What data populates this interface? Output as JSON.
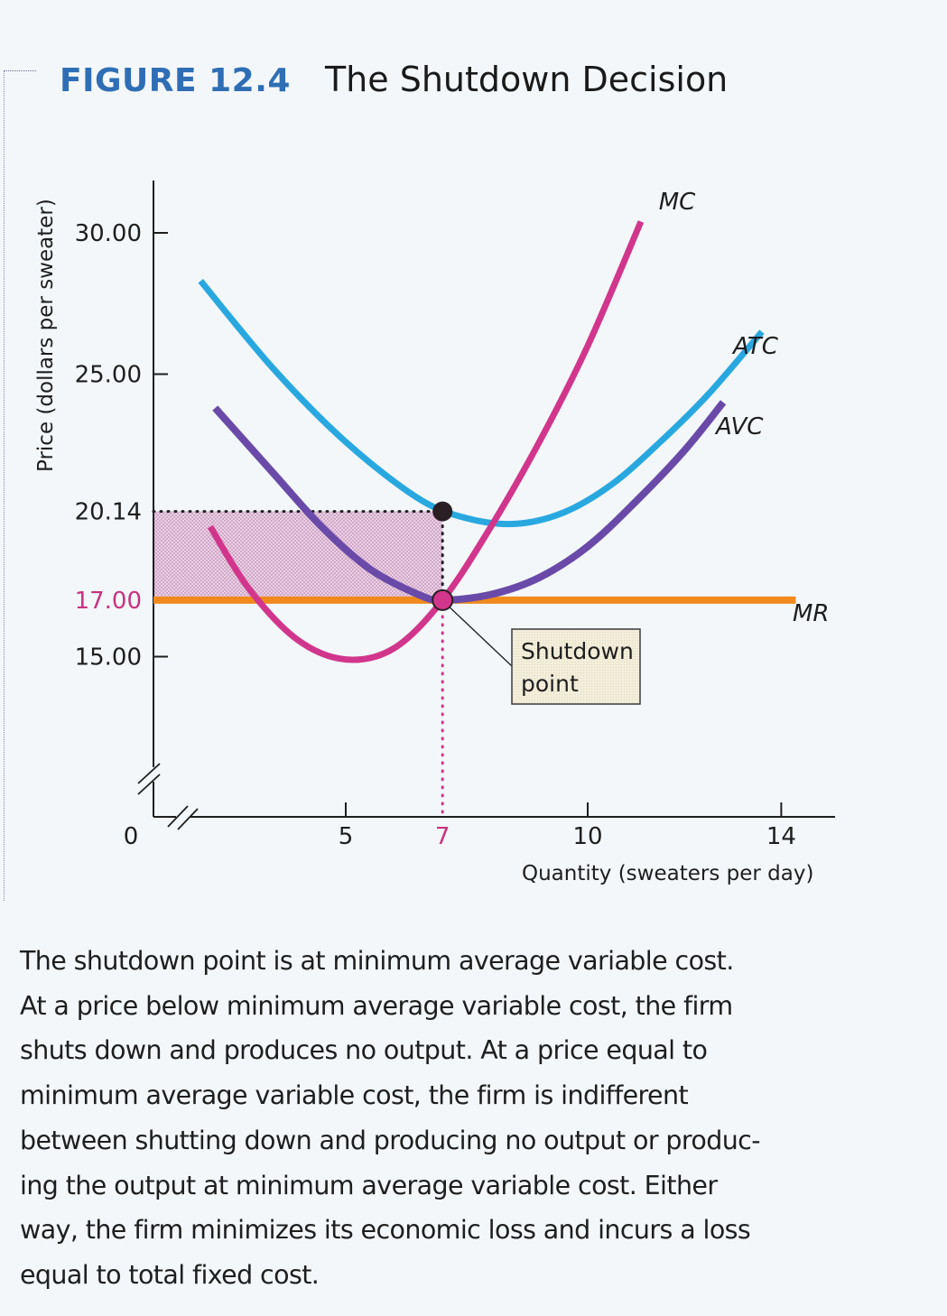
{
  "figure": {
    "number": "FIGURE 12.4",
    "title": "The Shutdown Decision"
  },
  "caption_lines": [
    "The shutdown point is at minimum average variable cost.",
    "At a price below minimum average variable cost, the firm",
    "shuts down and produces no output. At a price equal to",
    "minimum average variable cost, the firm is indifferent",
    "between shutting down and producing no output or produc-",
    "ing the output at minimum average variable cost. Either",
    "way, the firm minimizes its economic loss and incurs a loss",
    "equal to total fixed cost."
  ],
  "colors": {
    "title_blue": "#2f6eb5",
    "atc": "#29a8e0",
    "avc": "#6a4aa8",
    "mc": "#d1368c",
    "mr": "#f08a1c",
    "highlight_text": "#c8327e",
    "loss_area": "#d9a9cf",
    "callout_fill": "#f1ecd8"
  },
  "chart_data": {
    "type": "line",
    "title": "The Shutdown Decision",
    "xlabel": "Quantity (sweaters per day)",
    "ylabel": "Price (dollars per sweater)",
    "xlim": [
      0,
      15
    ],
    "ylim": [
      15,
      31
    ],
    "axis_breaks": [
      "x",
      "y"
    ],
    "grid": false,
    "x_ticks": [
      {
        "value": 0,
        "label": "0",
        "highlight": false
      },
      {
        "value": 5,
        "label": "5",
        "highlight": false
      },
      {
        "value": 7,
        "label": "7",
        "highlight": true
      },
      {
        "value": 10,
        "label": "10",
        "highlight": false
      },
      {
        "value": 14,
        "label": "14",
        "highlight": false
      }
    ],
    "y_ticks": [
      {
        "value": 30.0,
        "label": "30.00",
        "highlight": false
      },
      {
        "value": 25.0,
        "label": "25.00",
        "highlight": false
      },
      {
        "value": 20.14,
        "label": "20.14",
        "highlight": false
      },
      {
        "value": 17.0,
        "label": "17.00",
        "highlight": true
      },
      {
        "value": 15.0,
        "label": "15.00",
        "highlight": false
      }
    ],
    "series": [
      {
        "name": "ATC",
        "label": "ATC",
        "points": [
          [
            2.0,
            28.3
          ],
          [
            3.5,
            25.2
          ],
          [
            5.0,
            22.6
          ],
          [
            6.5,
            20.6
          ],
          [
            7.5,
            19.9
          ],
          [
            8.5,
            19.7
          ],
          [
            9.5,
            20.1
          ],
          [
            10.5,
            21.1
          ],
          [
            11.5,
            22.6
          ],
          [
            12.5,
            24.3
          ],
          [
            13.6,
            26.5
          ]
        ]
      },
      {
        "name": "AVC",
        "label": "AVC",
        "points": [
          [
            2.3,
            23.8
          ],
          [
            3.5,
            21.5
          ],
          [
            4.5,
            19.6
          ],
          [
            5.5,
            18.1
          ],
          [
            6.5,
            17.2
          ],
          [
            7.0,
            17.0
          ],
          [
            8.0,
            17.2
          ],
          [
            9.0,
            17.8
          ],
          [
            10.0,
            18.9
          ],
          [
            11.0,
            20.5
          ],
          [
            12.0,
            22.3
          ],
          [
            12.8,
            24.0
          ]
        ]
      },
      {
        "name": "MC",
        "label": "MC",
        "points": [
          [
            2.2,
            19.6
          ],
          [
            3.0,
            17.4
          ],
          [
            4.0,
            15.6
          ],
          [
            5.0,
            14.9
          ],
          [
            6.0,
            15.3
          ],
          [
            7.0,
            17.0
          ],
          [
            8.0,
            19.6
          ],
          [
            9.0,
            22.6
          ],
          [
            10.0,
            26.0
          ],
          [
            11.1,
            30.4
          ]
        ]
      },
      {
        "name": "MR",
        "label": "MR",
        "points": [
          [
            0,
            17.0
          ],
          [
            14.3,
            17.0
          ]
        ]
      }
    ],
    "points_of_interest": [
      {
        "name": "atc-at-q7",
        "x": 7,
        "y": 20.14
      },
      {
        "name": "shutdown-point",
        "x": 7,
        "y": 17.0
      }
    ],
    "shaded_area": {
      "x_range": [
        0,
        7
      ],
      "y_range": [
        17.0,
        20.14
      ],
      "meaning": "economic loss"
    },
    "annotations": [
      {
        "text_lines": [
          "Shutdown",
          "point"
        ],
        "points_to": "shutdown-point"
      }
    ]
  }
}
